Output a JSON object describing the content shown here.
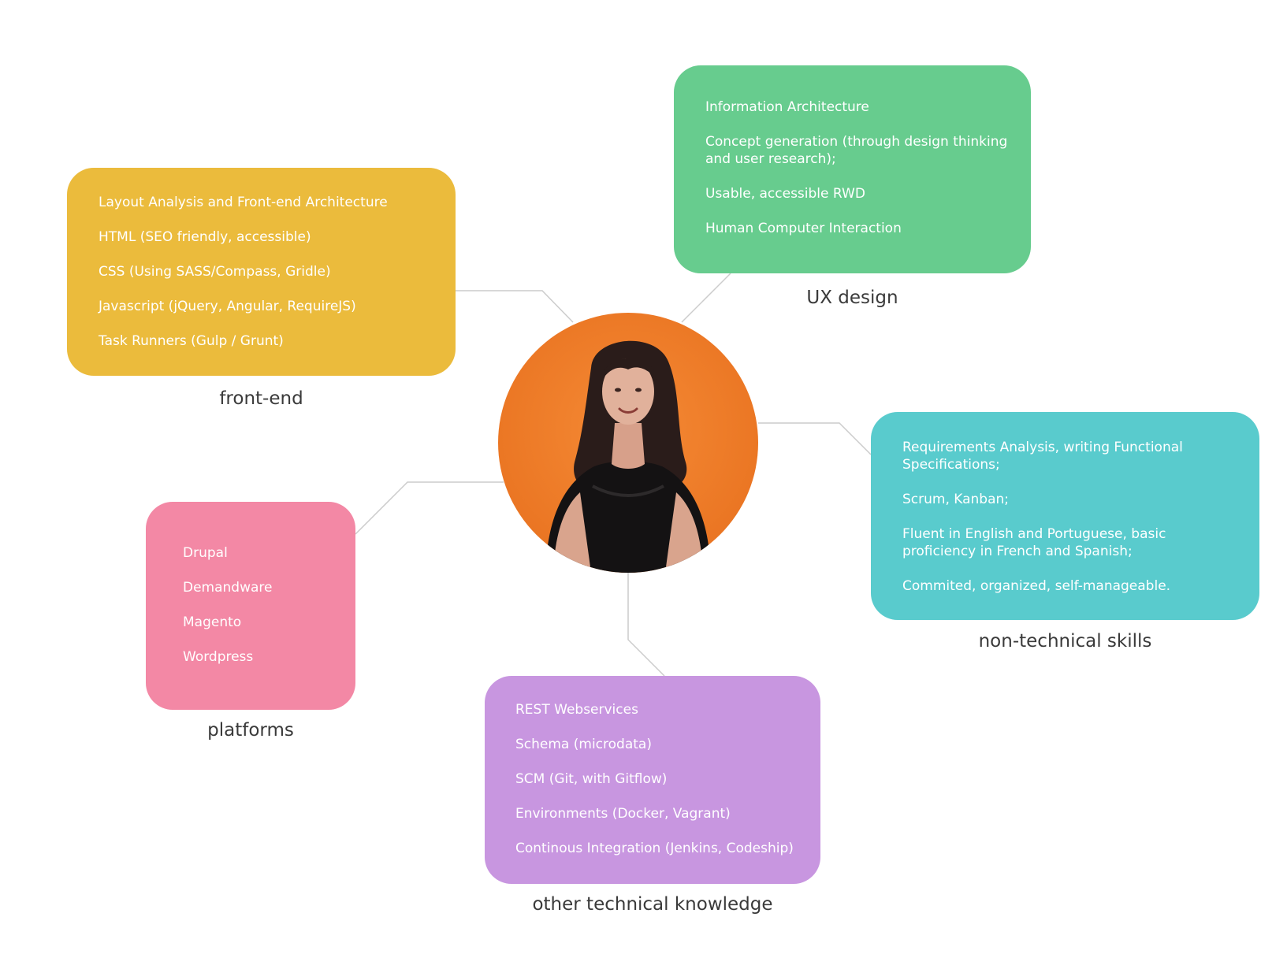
{
  "colors": {
    "frontend": "#ebbb3c",
    "ux": "#67cc8e",
    "nontech": "#59cbcd",
    "platforms": "#f388a5",
    "other": "#c896e0",
    "connector": "#cccccc",
    "avatar_background": "#ef7a26"
  },
  "avatar": {
    "icon": "person-portrait"
  },
  "nodes": {
    "frontend": {
      "label": "front-end",
      "items": [
        "Layout Analysis and Front-end Architecture",
        "HTML (SEO friendly, accessible)",
        "CSS (Using SASS/Compass, Gridle)",
        "Javascript (jQuery, Angular, RequireJS)",
        "Task Runners (Gulp / Grunt)"
      ]
    },
    "ux": {
      "label": "UX design",
      "items": [
        "Information Architecture",
        "Concept generation (through design thinking and user research);",
        "Usable, accessible RWD",
        "Human Computer Interaction"
      ]
    },
    "nontech": {
      "label": "non-technical skills",
      "items": [
        "Requirements Analysis, writing Functional Specifications;",
        "Scrum, Kanban;",
        "Fluent in English and Portuguese, basic proficiency in  French and Spanish;",
        "Commited, organized, self-manageable."
      ]
    },
    "platforms": {
      "label": "platforms",
      "items": [
        "Drupal",
        "Demandware",
        "Magento",
        "Wordpress"
      ]
    },
    "other": {
      "label": "other technical knowledge",
      "items": [
        "REST Webservices",
        "Schema (microdata)",
        "SCM (Git, with Gitflow)",
        "Environments (Docker, Vagrant)",
        "Continous Integration (Jenkins, Codeship)"
      ]
    }
  }
}
